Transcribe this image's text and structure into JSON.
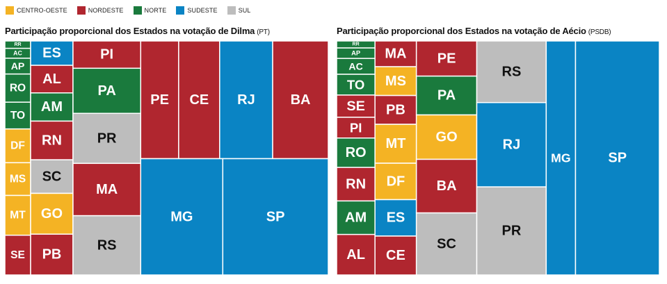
{
  "legend": {
    "items": [
      {
        "label": "CENTRO-OESTE",
        "color": "#f4b324"
      },
      {
        "label": "NORDESTE",
        "color": "#b0262f"
      },
      {
        "label": "NORTE",
        "color": "#1a7a3d"
      },
      {
        "label": "SUDESTE",
        "color": "#0a84c4"
      },
      {
        "label": "SUL",
        "color": "#bdbdbd"
      }
    ]
  },
  "chart_data": [
    {
      "type": "treemap",
      "title": "Participação proporcional dos Estados na votação de Dilma",
      "title_party": "(PT)",
      "cells": [
        {
          "label": "RR",
          "region": "NORTE",
          "share": 0.21
        },
        {
          "label": "AC",
          "region": "NORTE",
          "share": 0.28
        },
        {
          "label": "AP",
          "region": "NORTE",
          "share": 0.45
        },
        {
          "label": "RO",
          "region": "NORTE",
          "share": 0.8
        },
        {
          "label": "TO",
          "region": "NORTE",
          "share": 0.76
        },
        {
          "label": "DF",
          "region": "CENTRO-OESTE",
          "share": 0.96
        },
        {
          "label": "MS",
          "region": "CENTRO-OESTE",
          "share": 0.93
        },
        {
          "label": "MT",
          "region": "CENTRO-OESTE",
          "share": 1.13
        },
        {
          "label": "SE",
          "region": "NORDESTE",
          "share": 1.13
        },
        {
          "label": "ES",
          "region": "SUDESTE",
          "share": 1.14
        },
        {
          "label": "AL",
          "region": "NORDESTE",
          "share": 1.29
        },
        {
          "label": "AM",
          "region": "NORTE",
          "share": 1.32
        },
        {
          "label": "RN",
          "region": "NORDESTE",
          "share": 1.81
        },
        {
          "label": "SC",
          "region": "SUL",
          "share": 1.57
        },
        {
          "label": "GO",
          "region": "CENTRO-OESTE",
          "share": 1.91
        },
        {
          "label": "PB",
          "region": "NORDESTE",
          "share": 1.91
        },
        {
          "label": "PI",
          "region": "NORDESTE",
          "share": 2.04
        },
        {
          "label": "PA",
          "region": "NORTE",
          "share": 3.37
        },
        {
          "label": "PR",
          "region": "SUL",
          "share": 3.74
        },
        {
          "label": "MA",
          "region": "NORDESTE",
          "share": 3.91
        },
        {
          "label": "RS",
          "region": "SUL",
          "share": 4.43
        },
        {
          "label": "PE",
          "region": "NORDESTE",
          "share": 5.5
        },
        {
          "label": "CE",
          "region": "NORDESTE",
          "share": 5.94
        },
        {
          "label": "RJ",
          "region": "SUDESTE",
          "share": 7.68
        },
        {
          "label": "BA",
          "region": "NORDESTE",
          "share": 8.06
        },
        {
          "label": "MG",
          "region": "SUDESTE",
          "share": 11.07
        },
        {
          "label": "SP",
          "region": "SUDESTE",
          "share": 14.23
        }
      ]
    },
    {
      "type": "treemap",
      "title": "Participação proporcional dos Estados na votação de Aécio",
      "title_party": "(PSDB)",
      "cells": [
        {
          "label": "RR",
          "region": "NORTE",
          "share": 0.34
        },
        {
          "label": "AP",
          "region": "NORTE",
          "share": 0.51
        },
        {
          "label": "AC",
          "region": "NORTE",
          "share": 0.77
        },
        {
          "label": "TO",
          "region": "NORTE",
          "share": 1.01
        },
        {
          "label": "SE",
          "region": "NORDESTE",
          "share": 1.08
        },
        {
          "label": "PI",
          "region": "NORDESTE",
          "share": 1.01
        },
        {
          "label": "RO",
          "region": "NORTE",
          "share": 1.43
        },
        {
          "label": "RN",
          "region": "NORDESTE",
          "share": 1.63
        },
        {
          "label": "AM",
          "region": "NORTE",
          "share": 1.63
        },
        {
          "label": "AL",
          "region": "NORDESTE",
          "share": 1.97
        },
        {
          "label": "MA",
          "region": "NORDESTE",
          "share": 1.35
        },
        {
          "label": "MS",
          "region": "CENTRO-OESTE",
          "share": 1.51
        },
        {
          "label": "PB",
          "region": "NORDESTE",
          "share": 1.51
        },
        {
          "label": "MT",
          "region": "CENTRO-OESTE",
          "share": 2.04
        },
        {
          "label": "DF",
          "region": "CENTRO-OESTE",
          "share": 1.91
        },
        {
          "label": "ES",
          "region": "SUDESTE",
          "share": 1.91
        },
        {
          "label": "CE",
          "region": "NORDESTE",
          "share": 2.04
        },
        {
          "label": "PE",
          "region": "NORDESTE",
          "share": 2.69
        },
        {
          "label": "PA",
          "region": "NORTE",
          "share": 2.97
        },
        {
          "label": "GO",
          "region": "CENTRO-OESTE",
          "share": 3.4
        },
        {
          "label": "BA",
          "region": "NORDESTE",
          "share": 4.1
        },
        {
          "label": "SC",
          "region": "SUL",
          "share": 4.75
        },
        {
          "label": "RS",
          "region": "SUL",
          "share": 5.42
        },
        {
          "label": "RJ",
          "region": "SUDESTE",
          "share": 7.42
        },
        {
          "label": "PR",
          "region": "SUL",
          "share": 7.75
        },
        {
          "label": "MG",
          "region": "SUDESTE",
          "share": 8.69
        },
        {
          "label": "SP",
          "region": "SUDESTE",
          "share": 24.86
        }
      ]
    }
  ]
}
